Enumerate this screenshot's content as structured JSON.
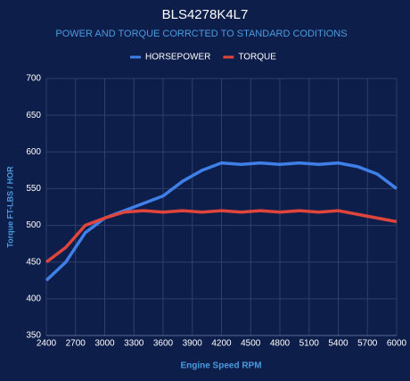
{
  "chart_data": {
    "type": "line",
    "title": "BLS4278K4L7",
    "subtitle": "POWER AND TORQUE CORRCTED TO STANDARD CODITIONS",
    "x_label": "Engine Speed RPM",
    "y_label": "Torque FT-LBS / HOR",
    "x": [
      2400,
      2600,
      2800,
      3000,
      3200,
      3400,
      3600,
      3800,
      4000,
      4200,
      4400,
      4600,
      4800,
      5000,
      5200,
      5400,
      5600,
      5800,
      6000
    ],
    "series": [
      {
        "name": "HORSEPOWER",
        "color": "#3f7fe8",
        "values": [
          425,
          450,
          490,
          510,
          520,
          530,
          540,
          560,
          575,
          585,
          583,
          585,
          583,
          585,
          583,
          585,
          580,
          570,
          550
        ]
      },
      {
        "name": "TORQUE",
        "color": "#e0453c",
        "values": [
          450,
          470,
          500,
          510,
          518,
          520,
          518,
          520,
          518,
          520,
          518,
          520,
          518,
          520,
          518,
          520,
          515,
          510,
          505
        ]
      }
    ],
    "xlim": [
      2400,
      6000
    ],
    "xticks": [
      2400,
      2700,
      3000,
      3300,
      3600,
      3900,
      4200,
      4500,
      4800,
      5100,
      5400,
      5700,
      6000
    ],
    "ylim": [
      350,
      700
    ],
    "yticks": [
      350,
      400,
      450,
      500,
      550,
      600,
      650,
      700
    ],
    "grid": true,
    "legend": "top"
  }
}
